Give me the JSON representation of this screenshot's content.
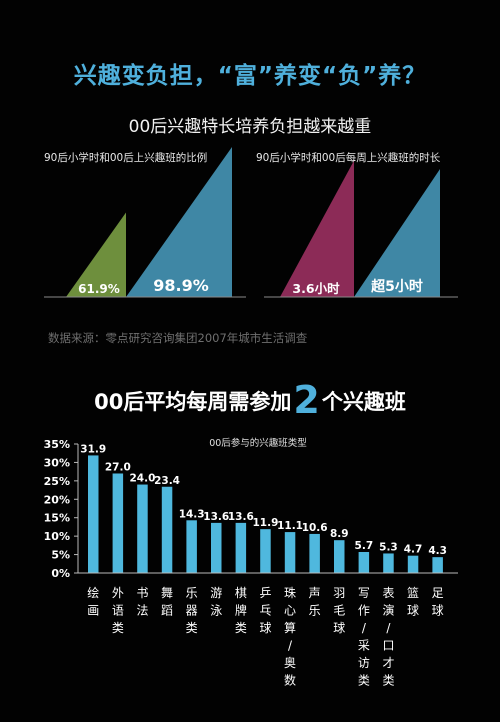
{
  "headline": "兴趣变负担，“富”养变“负”养？",
  "subtitle": "00后兴趣特长培养负担越来越重",
  "source": "数据来源：零点研究咨询集团2007年城市生活调查",
  "weekly": {
    "prefix": "00后平均每周需参加",
    "number": "2",
    "suffix": "个兴趣班"
  },
  "chart_data": [
    {
      "type": "area",
      "title": "90后小学时和00后上兴趣班的比例",
      "categories": [
        "90后",
        "00后"
      ],
      "values": [
        61.9,
        98.9
      ],
      "value_labels": [
        "61.9%",
        "98.9%"
      ],
      "colors": [
        "#6e8f3d",
        "#3f87a5"
      ]
    },
    {
      "type": "area",
      "title": "90后小学时和00后每周上兴趣班的时长",
      "categories": [
        "90后",
        "00后"
      ],
      "values": [
        3.6,
        5
      ],
      "value_labels": [
        "3.6小时",
        "超5小时"
      ],
      "colors": [
        "#8c2b57",
        "#3f87a5"
      ]
    },
    {
      "type": "bar",
      "title": "00后参与的兴趣班类型",
      "categories": [
        "绘画",
        "外语类",
        "书法",
        "舞蹈",
        "乐器类",
        "游泳",
        "棋牌类",
        "乒乓球",
        "珠心算/奥数",
        "声乐",
        "羽毛球",
        "写作/采访类",
        "表演/口才类",
        "篮球",
        "足球"
      ],
      "values": [
        31.9,
        27.0,
        24.0,
        23.4,
        14.3,
        13.6,
        13.6,
        11.9,
        11.1,
        10.6,
        8.9,
        5.7,
        5.3,
        4.7,
        4.3
      ],
      "value_labels": [
        "31.9",
        "27.0",
        "24.0",
        "23.4",
        "14.3",
        "13.6",
        "13.6",
        "11.9",
        "11.1",
        "10.6",
        "8.9",
        "5.7",
        "5.3",
        "4.7",
        "4.3"
      ],
      "ylim": [
        0,
        35
      ],
      "y_ticks": [
        "0%",
        "5%",
        "10%",
        "15%",
        "20%",
        "25%",
        "30%",
        "35%"
      ],
      "color": "#4fb8de"
    }
  ]
}
